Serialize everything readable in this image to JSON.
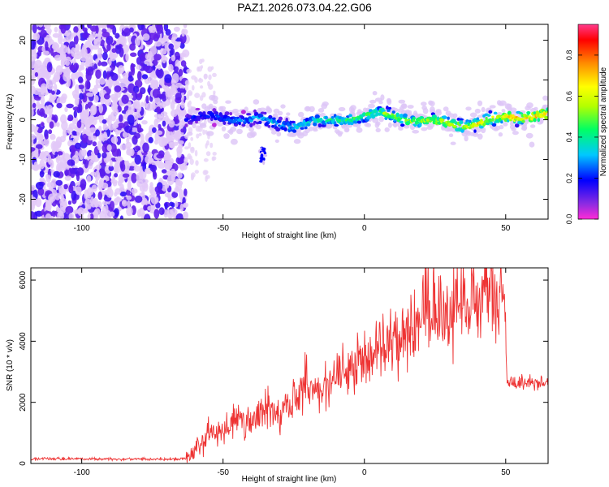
{
  "figure_title": "PAZ1.2026.073.04.22.G06",
  "chart_data": [
    {
      "type": "heatmap",
      "title": "PAZ1.2026.073.04.22.G06",
      "xlabel": "Height of straight line (km)",
      "ylabel": "Frequency (Hz)",
      "xlim": [
        -118,
        65
      ],
      "ylim": [
        -25,
        24
      ],
      "x_ticks": [
        -100,
        -50,
        0,
        50
      ],
      "y_ticks": [
        -20,
        -10,
        0,
        10,
        20
      ],
      "colorbar": {
        "label": "Normalized spectral amplitude",
        "range": [
          0,
          0.95
        ],
        "ticks": [
          0,
          0.2,
          0.4,
          0.6,
          0.8
        ],
        "colors": [
          "#ff2bd6",
          "#8a2be2",
          "#0000ff",
          "#00c8ff",
          "#00ff64",
          "#b4ff00",
          "#ffff00",
          "#ff8c00",
          "#ff0000",
          "#ff3a8c"
        ]
      },
      "regions": [
        {
          "name": "noise",
          "x_range": [
            -118,
            -63
          ],
          "freq_range": [
            -25,
            24
          ],
          "amplitude": [
            0.02,
            0.2
          ]
        },
        {
          "name": "signal",
          "x_range": [
            -63,
            65
          ],
          "freq_center": 0,
          "freq_width": 2.5,
          "amplitude": [
            0.2,
            0.95
          ]
        },
        {
          "name": "spur",
          "x": -36,
          "freq_range": [
            -11,
            -7
          ],
          "amplitude": [
            0.1,
            0.2
          ]
        }
      ]
    },
    {
      "type": "line",
      "title": "",
      "xlabel": "Height of straight line (km)",
      "ylabel": "SNR (10 * v/v)",
      "xlim": [
        -118,
        65
      ],
      "ylim": [
        0,
        6400
      ],
      "x_ticks": [
        -100,
        -50,
        0,
        50
      ],
      "y_ticks": [
        0,
        2000,
        4000,
        6000
      ],
      "color": "#ee3333",
      "series": [
        {
          "name": "SNR",
          "x": [
            -118,
            -100,
            -80,
            -66,
            -62,
            -58,
            -50,
            -45,
            -40,
            -35,
            -30,
            -25,
            -20,
            -15,
            -10,
            -5,
            0,
            5,
            10,
            15,
            20,
            25,
            30,
            35,
            40,
            45,
            49.5,
            50.5,
            55,
            60,
            65
          ],
          "values": [
            150,
            150,
            140,
            140,
            180,
            700,
            1100,
            1500,
            1300,
            1800,
            1700,
            2100,
            2500,
            2300,
            2800,
            3000,
            3400,
            3700,
            4000,
            4300,
            4600,
            4900,
            5100,
            5300,
            5400,
            5500,
            5500,
            2650,
            2600,
            2650,
            2600
          ]
        }
      ]
    }
  ]
}
